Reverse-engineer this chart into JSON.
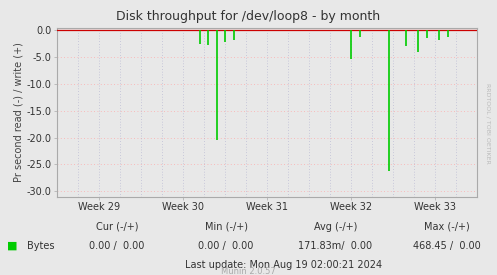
{
  "title": "Disk throughput for /dev/loop8 - by month",
  "ylabel": "Pr second read (-) / write (+)",
  "background_color": "#e8e8e8",
  "plot_bg_color": "#e8e8e8",
  "grid_color_h": "#ffaaaa",
  "grid_color_v": "#aaaacc",
  "xlim": [
    0,
    100
  ],
  "ylim": [
    -31,
    0.5
  ],
  "yticks": [
    0.0,
    -5.0,
    -10.0,
    -15.0,
    -20.0,
    -25.0,
    -30.0
  ],
  "xtick_labels": [
    "Week 29",
    "Week 30",
    "Week 31",
    "Week 32",
    "Week 33"
  ],
  "xtick_positions": [
    10,
    30,
    50,
    70,
    90
  ],
  "line_color": "#00cc00",
  "zero_line_color": "#cc0000",
  "right_label": "RRDTOOL / TOBI OETIKER",
  "legend_label": "Bytes",
  "last_update": "Last update: Mon Aug 19 02:00:21 2024",
  "munin_version": "Munin 2.0.57",
  "spikes": [
    {
      "x": 34,
      "y_min": -2.5
    },
    {
      "x": 36,
      "y_min": -2.8
    },
    {
      "x": 38,
      "y_min": -20.5
    },
    {
      "x": 40,
      "y_min": -2.2
    },
    {
      "x": 42,
      "y_min": -1.8
    },
    {
      "x": 70,
      "y_min": -5.3
    },
    {
      "x": 72,
      "y_min": -1.2
    },
    {
      "x": 79,
      "y_min": -26.2
    },
    {
      "x": 83,
      "y_min": -3.0
    },
    {
      "x": 86,
      "y_min": -4.0
    },
    {
      "x": 88,
      "y_min": -1.5
    },
    {
      "x": 91,
      "y_min": -1.8
    },
    {
      "x": 93,
      "y_min": -1.2
    }
  ]
}
